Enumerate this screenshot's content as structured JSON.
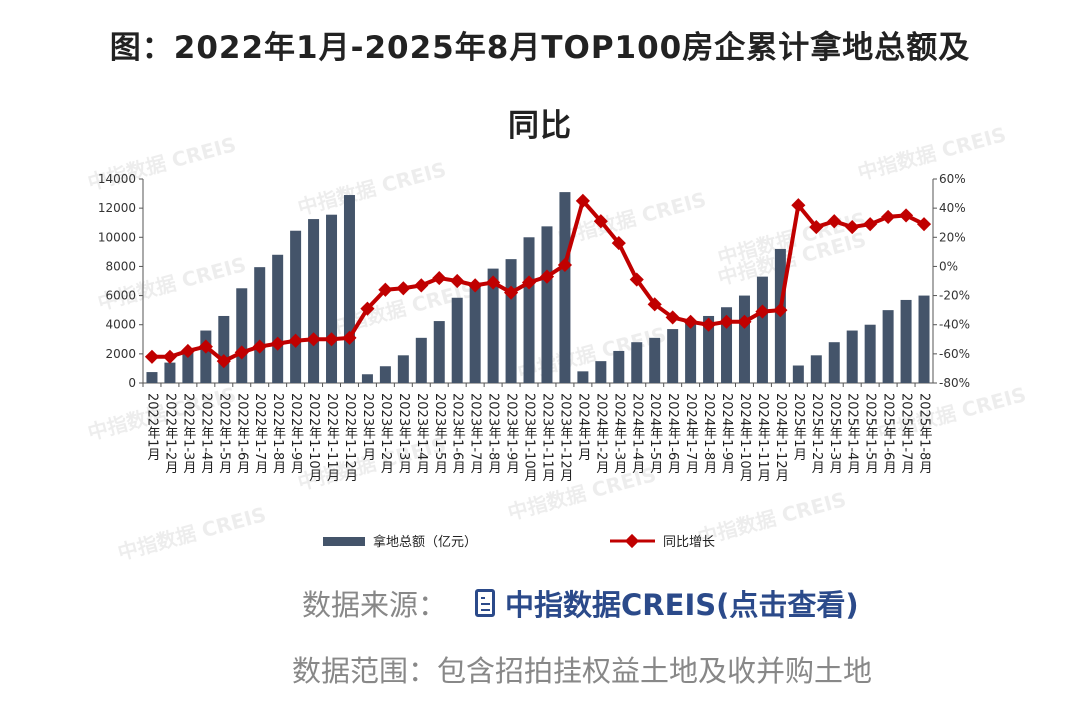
{
  "title_line1": "图：2022年1月-2025年8月TOP100房企累计拿地总额及",
  "title_line2": "同比",
  "watermark": "中指数据 CREIS",
  "footer": {
    "source_label": "数据来源：",
    "source_link": "中指数据CREIS(点击查看)",
    "scope": "数据范围：包含招拍挂权益土地及收并购土地"
  },
  "colors": {
    "bar": "#44546a",
    "line": "#c00000"
  },
  "chart_data": {
    "type": "bar",
    "title": "2022年1月-2025年8月TOP100房企累计拿地总额及同比",
    "categories": [
      "2022年1月",
      "2022年1-2月",
      "2022年1-3月",
      "2022年1-4月",
      "2022年1-5月",
      "2022年1-6月",
      "2022年1-7月",
      "2022年1-8月",
      "2022年1-9月",
      "2022年1-10月",
      "2022年1-11月",
      "2022年1-12月",
      "2023年1月",
      "2023年1-2月",
      "2023年1-3月",
      "2023年1-4月",
      "2023年1-5月",
      "2023年1-6月",
      "2023年1-7月",
      "2023年1-8月",
      "2023年1-9月",
      "2023年1-10月",
      "2023年1-11月",
      "2023年1-12月",
      "2024年1月",
      "2024年1-2月",
      "2024年1-3月",
      "2024年1-4月",
      "2024年1-5月",
      "2024年1-6月",
      "2024年1-7月",
      "2024年1-8月",
      "2024年1-9月",
      "2024年1-10月",
      "2024年1-11月",
      "2024年1-12月",
      "2025年1月",
      "2025年1-2月",
      "2025年1-3月",
      "2025年1-4月",
      "2025年1-5月",
      "2025年1-6月",
      "2025年1-7月",
      "2025年1-8月"
    ],
    "series": [
      {
        "name": "拿地总额（亿元）",
        "type": "bar",
        "axis": "left",
        "values": [
          750,
          1400,
          2300,
          3600,
          4600,
          6500,
          7950,
          8800,
          10450,
          11250,
          11550,
          12900,
          600,
          1150,
          1900,
          3100,
          4250,
          5850,
          6900,
          7850,
          8500,
          10000,
          10750,
          13100,
          800,
          1500,
          2200,
          2800,
          3100,
          3700,
          4200,
          4600,
          5200,
          6000,
          7300,
          9200,
          1200,
          1900,
          2800,
          3600,
          4000,
          5000,
          5700,
          6000
        ]
      },
      {
        "name": "同比增长",
        "type": "line",
        "axis": "right",
        "values": [
          -62,
          -62,
          -58,
          -55,
          -65,
          -59,
          -55,
          -53,
          -51,
          -50,
          -50,
          -49,
          -29,
          -16,
          -15,
          -13,
          -8,
          -10,
          -13,
          -11,
          -18,
          -11,
          -7,
          1,
          45,
          31,
          16,
          -9,
          -26,
          -35,
          -38,
          -40,
          -38,
          -38,
          -31,
          -30,
          42,
          27,
          31,
          27,
          29,
          34,
          35,
          29
        ]
      }
    ],
    "y_left": {
      "ylim": [
        0,
        14000
      ],
      "ticks": [
        "0",
        "2000",
        "4000",
        "6000",
        "8000",
        "10000",
        "12000",
        "14000"
      ]
    },
    "y_right": {
      "ylim": [
        -80,
        60
      ],
      "ticks": [
        "-80%",
        "-60%",
        "-40%",
        "-20%",
        "0%",
        "20%",
        "40%",
        "60%"
      ]
    },
    "legend_position": "bottom",
    "grid": false
  }
}
